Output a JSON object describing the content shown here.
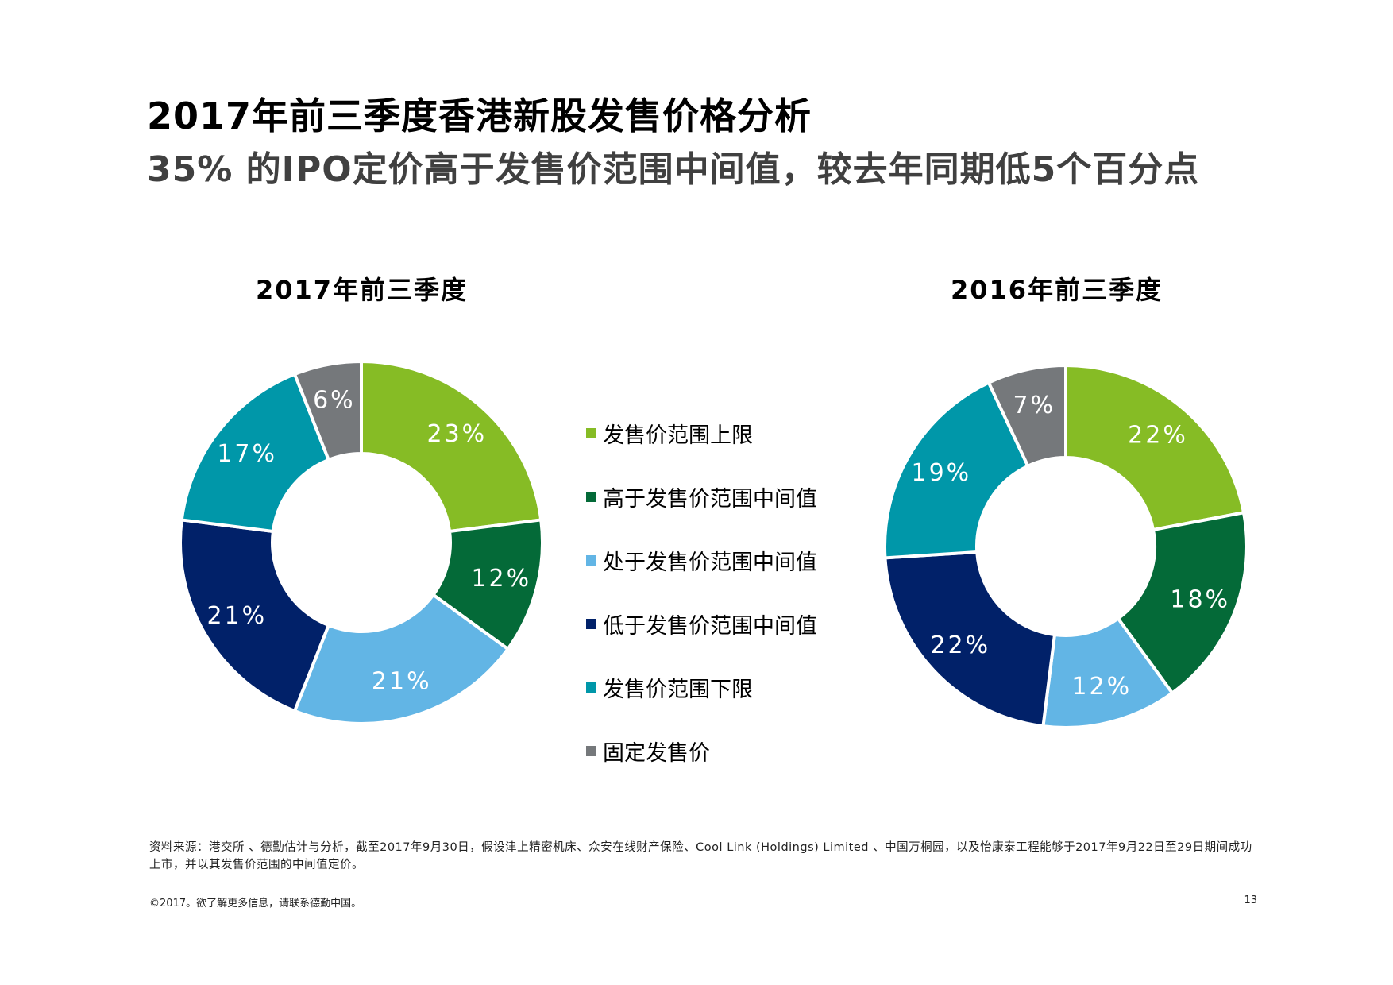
{
  "title": "2017年前三季度香港新股发售价格分析",
  "subtitle": "35% 的IPO定价高于发售价范围中间值，较去年同期低5个百分点",
  "chart_data": [
    {
      "type": "pie",
      "variant": "donut",
      "title": "2017年前三季度",
      "categories": [
        "发售价范围上限",
        "高于发售价范围中间值",
        "处于发售价范围中间值",
        "低于发售价范围中间值",
        "发售价范围下限",
        "固定发售价"
      ],
      "values": [
        23,
        12,
        21,
        21,
        17,
        6
      ],
      "labels": [
        "23%",
        "12%",
        "21%",
        "21%",
        "17%",
        "6%"
      ],
      "unit": "%"
    },
    {
      "type": "pie",
      "variant": "donut",
      "title": "2016年前三季度",
      "categories": [
        "发售价范围上限",
        "高于发售价范围中间值",
        "处于发售价范围中间值",
        "低于发售价范围中间值",
        "发售价范围下限",
        "固定发售价"
      ],
      "values": [
        22,
        18,
        12,
        22,
        19,
        7
      ],
      "labels": [
        "22%",
        "18%",
        "12%",
        "22%",
        "19%",
        "7%"
      ],
      "unit": "%"
    }
  ],
  "legend": [
    {
      "label": "发售价范围上限",
      "color": "#86BC25"
    },
    {
      "label": "高于发售价范围中间值",
      "color": "#046A38"
    },
    {
      "label": "处于发售价范围中间值",
      "color": "#62B5E5"
    },
    {
      "label": "低于发售价范围中间值",
      "color": "#012169"
    },
    {
      "label": "发售价范围下限",
      "color": "#0097A9"
    },
    {
      "label": "固定发售价",
      "color": "#75787B"
    }
  ],
  "source_note": "资料来源：港交所 、德勤估计与分析，截至2017年9月30日，假设津上精密机床、众安在线财产保险、Cool Link (Holdings) Limited 、中国万桐园，以及怡康泰工程能够于2017年9月22日至29日期间成功上市，并以其发售价范围的中间值定价。",
  "footer": "©2017。欲了解更多信息，请联系德勤中国。",
  "page_number": "13"
}
